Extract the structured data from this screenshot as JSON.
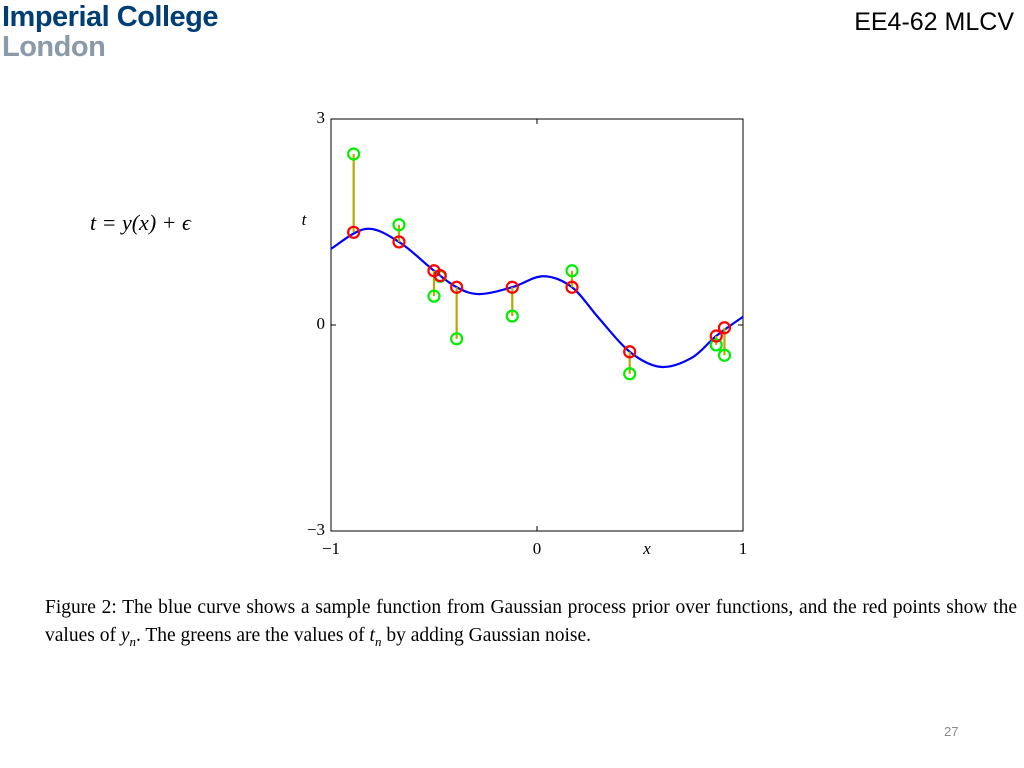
{
  "header": {
    "logo_line1": "Imperial College",
    "logo_line2": "London",
    "course": "EE4-62 MLCV"
  },
  "equation": "t = y(x) + ϵ",
  "chart_data": {
    "type": "line",
    "x_label": "x",
    "y_label": "t",
    "xlim": [
      -1,
      1
    ],
    "ylim": [
      -3,
      3
    ],
    "xticks": [
      {
        "value": -1,
        "label": "−1"
      },
      0,
      1
    ],
    "yticks": [
      {
        "value": -3,
        "label": "−3"
      },
      0,
      3
    ],
    "series": [
      {
        "color": "#0000ff",
        "x": [
          -1,
          -0.83,
          -0.67,
          -0.5,
          -0.39,
          -0.28,
          -0.12,
          0.03,
          0.17,
          0.3,
          0.45,
          0.6,
          0.75,
          0.87,
          1.0
        ],
        "values": [
          1.11,
          1.4,
          1.21,
          0.79,
          0.55,
          0.45,
          0.55,
          0.71,
          0.55,
          0.1,
          -0.39,
          -0.61,
          -0.48,
          -0.16,
          0.12
        ]
      },
      {
        "color": "#ff0000",
        "x": [
          -0.89,
          -0.67,
          -0.5,
          -0.47,
          -0.39,
          -0.12,
          0.17,
          0.45,
          0.87,
          0.91
        ],
        "values": [
          1.35,
          1.21,
          0.79,
          0.72,
          0.55,
          0.55,
          0.55,
          -0.39,
          -0.16,
          -0.04
        ]
      },
      {
        "color": "#00ee00",
        "x": [
          -0.89,
          -0.67,
          -0.5,
          -0.47,
          -0.39,
          -0.12,
          0.17,
          0.45,
          0.87,
          0.91
        ],
        "values": [
          2.49,
          1.46,
          0.42,
          0.71,
          -0.2,
          0.13,
          0.79,
          -0.71,
          -0.29,
          -0.44
        ]
      }
    ],
    "stem_color": "#b8a800"
  },
  "caption": [
    "Figure 2: The blue curve shows a sample function from Gaussian process prior over functions, and the red points show the values of ",
    "y",
    "n",
    ". The greens are the values of ",
    "t",
    "n",
    " by adding Gaussian noise."
  ],
  "page_number": "27"
}
